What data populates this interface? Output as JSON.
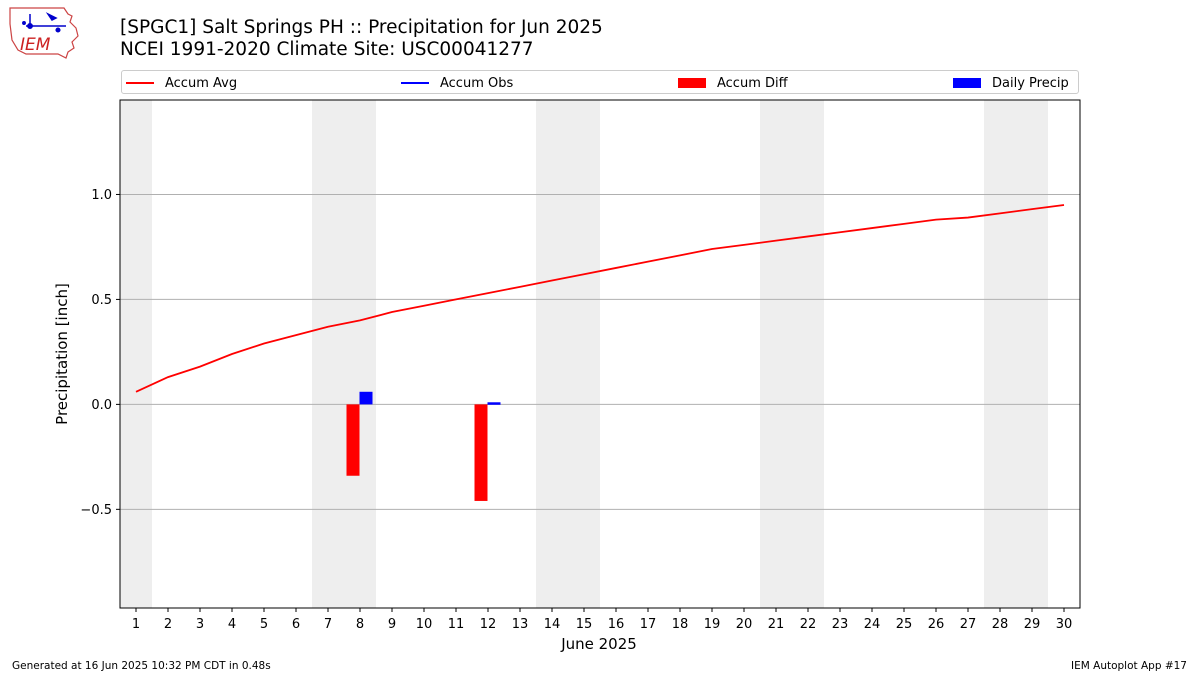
{
  "header": {
    "title_line1": "[SPGC1] Salt Springs PH :: Precipitation for Jun 2025",
    "title_line2": "NCEI 1991-2020 Climate Site: USC00041277",
    "logo_text": "IEM"
  },
  "legend": [
    {
      "label": "Accum Avg",
      "color": "#ff0000",
      "kind": "line"
    },
    {
      "label": "Accum Obs",
      "color": "#0000ff",
      "kind": "line"
    },
    {
      "label": "Accum Diff",
      "color": "#ff0000",
      "kind": "box"
    },
    {
      "label": "Daily Precip",
      "color": "#0000ff",
      "kind": "box"
    }
  ],
  "footer": {
    "left": "Generated at 16 Jun 2025 10:32 PM CDT in 0.48s",
    "right": "IEM Autoplot App #17"
  },
  "chart_data": {
    "type": "bar",
    "xlabel": "June 2025",
    "ylabel": "Precipitation [inch]",
    "x": [
      1,
      2,
      3,
      4,
      5,
      6,
      7,
      8,
      9,
      10,
      11,
      12,
      13,
      14,
      15,
      16,
      17,
      18,
      19,
      20,
      21,
      22,
      23,
      24,
      25,
      26,
      27,
      28,
      29,
      30
    ],
    "xlim": [
      0.5,
      30.5
    ],
    "ylim": [
      -0.97,
      1.45
    ],
    "yticks": [
      -0.5,
      0.0,
      0.5,
      1.0
    ],
    "ytick_labels": [
      "−0.5",
      "0.0",
      "0.5",
      "1.0"
    ],
    "grid": true,
    "weekend_shading": [
      [
        0.5,
        1.5
      ],
      [
        6.5,
        8.5
      ],
      [
        13.5,
        15.5
      ],
      [
        20.5,
        22.5
      ],
      [
        27.5,
        29.5
      ]
    ],
    "series": [
      {
        "name": "Accum Avg",
        "type": "line",
        "color": "#ff0000",
        "values": [
          0.06,
          0.13,
          0.18,
          0.24,
          0.29,
          0.33,
          0.37,
          0.4,
          0.44,
          0.47,
          0.5,
          0.53,
          0.56,
          0.59,
          0.62,
          0.65,
          0.68,
          0.71,
          0.74,
          0.76,
          0.78,
          0.8,
          0.82,
          0.84,
          0.86,
          0.88,
          0.89,
          0.91,
          0.93,
          0.95
        ]
      },
      {
        "name": "Accum Diff",
        "type": "bar",
        "color": "#ff0000",
        "points": [
          {
            "x": 8,
            "value": -0.34
          },
          {
            "x": 12,
            "value": -0.46
          }
        ]
      },
      {
        "name": "Daily Precip",
        "type": "bar",
        "color": "#0000ff",
        "points": [
          {
            "x": 8,
            "value": 0.06
          },
          {
            "x": 12,
            "value": 0.01
          }
        ]
      }
    ]
  }
}
